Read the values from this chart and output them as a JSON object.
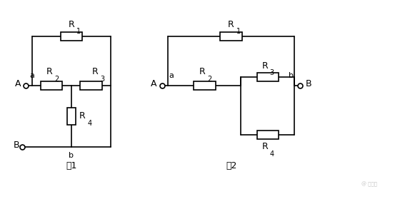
{
  "bg_color": "#ffffff",
  "line_color": "#000000",
  "line_width": 1.2,
  "fig1_label": "图1",
  "fig2_label": "图2",
  "resistor_labels": [
    "R",
    "1",
    "R",
    "2",
    "R",
    "3",
    "R",
    "4"
  ],
  "font_size_label": 10,
  "font_size_node": 9
}
